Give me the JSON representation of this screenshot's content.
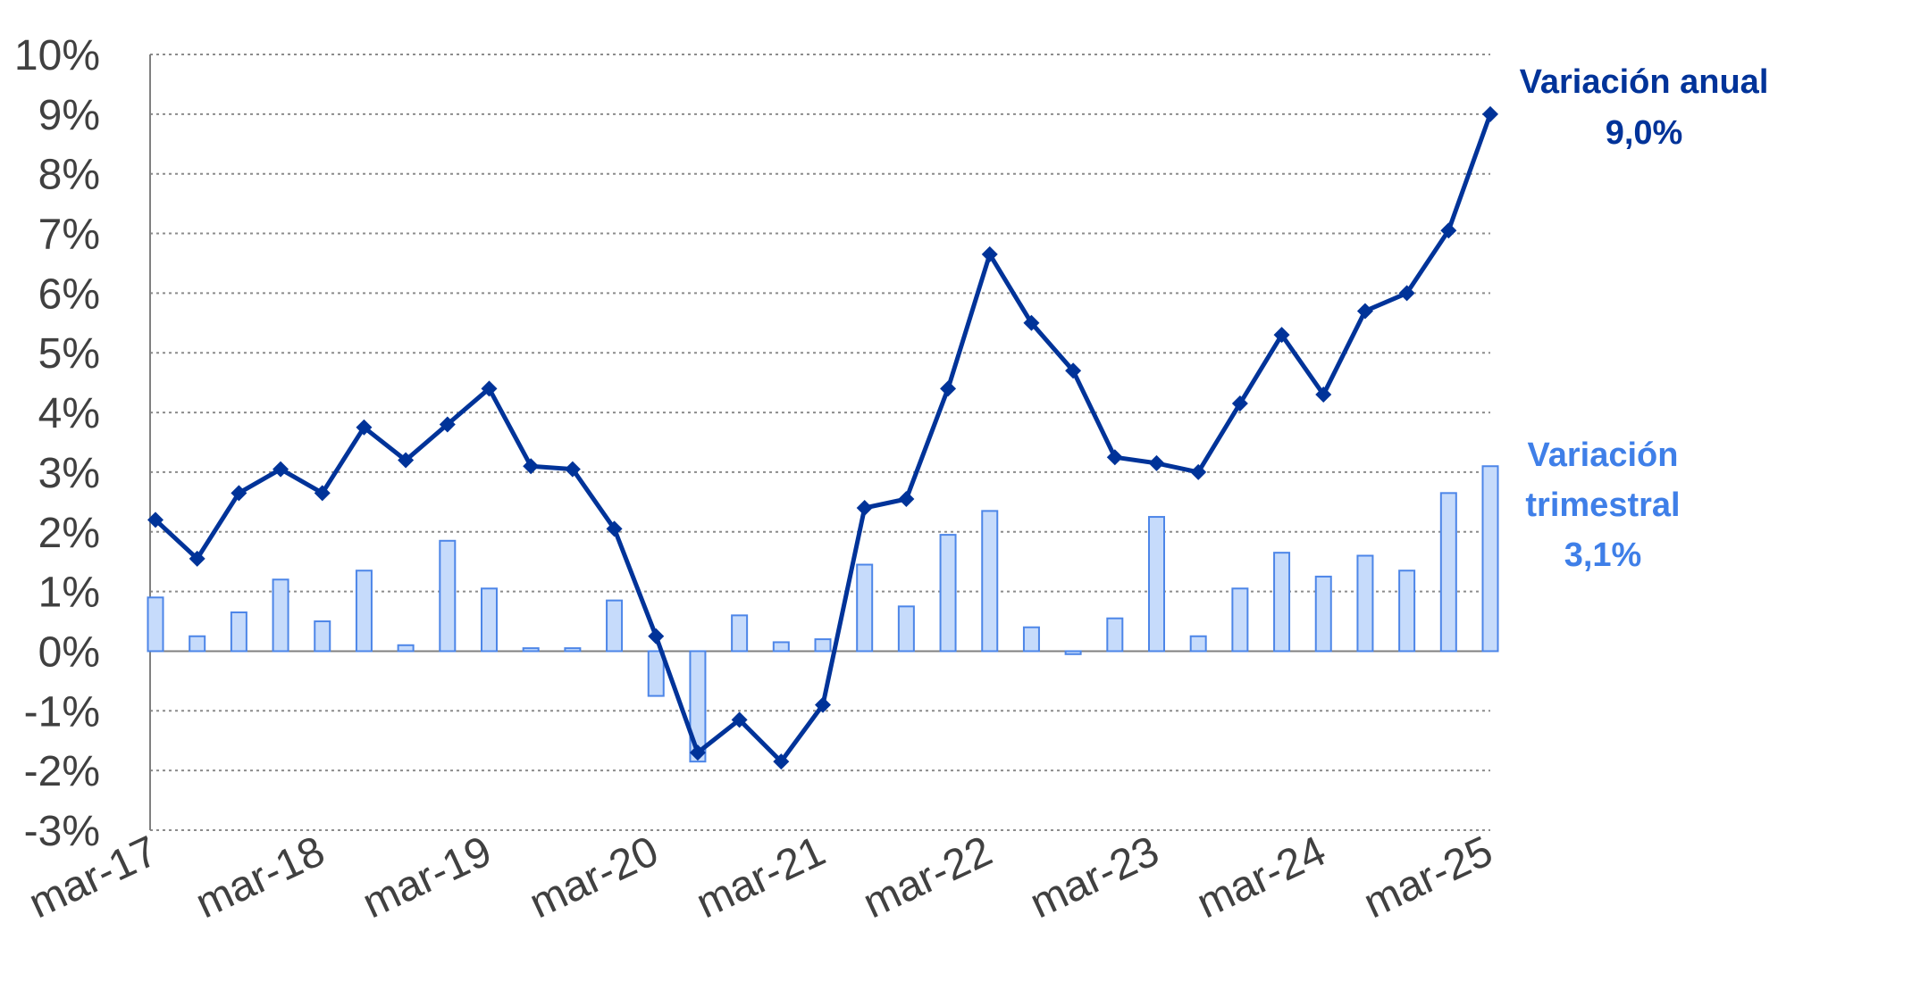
{
  "chart_data": {
    "type": "bar+line",
    "ylim": [
      -3,
      10
    ],
    "y_ticks": [
      "10%",
      "9%",
      "8%",
      "7%",
      "6%",
      "5%",
      "4%",
      "3%",
      "2%",
      "1%",
      "0%",
      "-1%",
      "-2%",
      "-3%"
    ],
    "y_tick_values": [
      10,
      9,
      8,
      7,
      6,
      5,
      4,
      3,
      2,
      1,
      0,
      -1,
      -2,
      -3
    ],
    "x_labels": [
      "mar-17",
      "mar-18",
      "mar-19",
      "mar-20",
      "mar-21",
      "mar-22",
      "mar-23",
      "mar-24",
      "mar-25"
    ],
    "x_label_every": 4,
    "grid": true,
    "colors": {
      "anual": "#003399",
      "trimestral_fill": "#c6dbfb",
      "trimestral_stroke": "#4d86e8",
      "trimestral_text": "#3f7fe8",
      "axis": "#808080",
      "grid": "#8c8c8c"
    },
    "series": [
      {
        "name": "Variación anual",
        "type": "line",
        "values": [
          2.2,
          1.55,
          2.65,
          3.05,
          2.65,
          3.75,
          3.2,
          3.8,
          4.4,
          3.1,
          3.05,
          2.05,
          0.25,
          -1.7,
          -1.15,
          -1.85,
          -0.9,
          2.4,
          2.55,
          4.4,
          6.65,
          5.5,
          4.7,
          3.25,
          3.15,
          3.0,
          4.15,
          5.3,
          4.3,
          5.7,
          6.0,
          7.05,
          9.0
        ]
      },
      {
        "name": "Variación trimestral",
        "type": "bar",
        "values": [
          0.9,
          0.25,
          0.65,
          1.2,
          0.5,
          1.35,
          0.1,
          1.85,
          1.05,
          0.05,
          0.05,
          0.85,
          -0.75,
          -1.85,
          0.6,
          0.15,
          0.2,
          1.45,
          0.75,
          1.95,
          2.35,
          0.4,
          -0.05,
          0.55,
          2.25,
          0.25,
          1.05,
          1.65,
          1.25,
          1.6,
          1.35,
          2.65,
          3.1
        ]
      }
    ],
    "annotations": {
      "anual_label": "Variación anual",
      "anual_value": "9,0%",
      "trimestral_label_line1": "Variación",
      "trimestral_label_line2": "trimestral",
      "trimestral_value": "3,1%"
    }
  }
}
